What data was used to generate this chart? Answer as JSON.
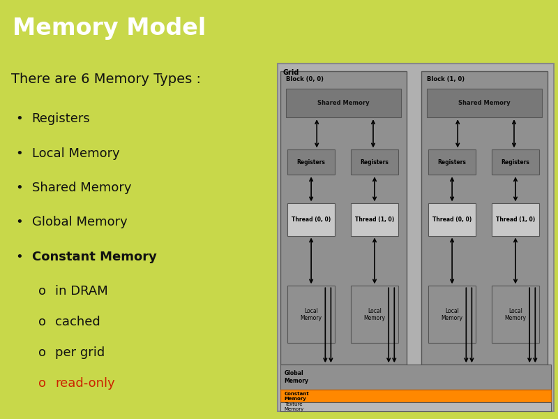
{
  "title": "Memory Model",
  "title_bg": "#000000",
  "title_color": "#ffffff",
  "title_fontsize": 24,
  "body_bg": "#c8d84a",
  "slide_text": "There are 6 Memory Types :",
  "slide_text_fontsize": 14,
  "bullet_items": [
    {
      "text": "Registers",
      "bold": false,
      "indent": 0
    },
    {
      "text": "Local Memory",
      "bold": false,
      "indent": 0
    },
    {
      "text": "Shared Memory",
      "bold": false,
      "indent": 0
    },
    {
      "text": "Global Memory",
      "bold": false,
      "indent": 0
    },
    {
      "text": "Constant Memory",
      "bold": true,
      "indent": 0
    },
    {
      "text": "in DRAM",
      "bold": false,
      "indent": 1
    },
    {
      "text": "cached",
      "bold": false,
      "indent": 1
    },
    {
      "text": "per grid",
      "bold": false,
      "indent": 1
    },
    {
      "text": "read-only",
      "bold": false,
      "indent": 1,
      "color": "#cc2200"
    }
  ],
  "bullet_fontsize": 13,
  "diagram": {
    "outer_bg": "#b0b0b0",
    "block_bg": "#909090",
    "shared_bg": "#787878",
    "registers_bg": "#808080",
    "thread_bg": "#c8c8c8",
    "local_bg": "#909090",
    "global_bg": "#909090",
    "constant_bg": "#ff8800",
    "texture_bg": "#b8b8b8"
  }
}
